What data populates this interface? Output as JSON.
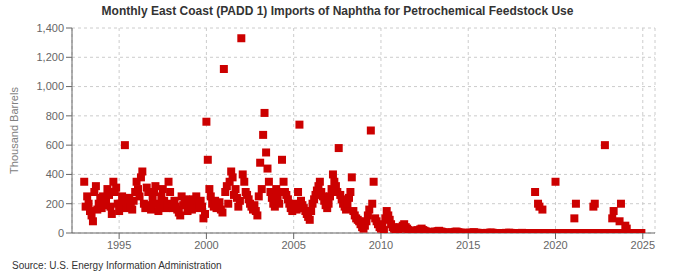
{
  "chart_data": {
    "type": "scatter",
    "title": "Monthly East Coast (PADD 1) Imports of Naphtha for Petrochemical Feedstock Use",
    "ylabel": "Thousand Barrels",
    "source": "Source: U.S. Energy Information Administration",
    "color": "#CC0000",
    "marker": "square",
    "grid": true,
    "xlim": [
      1992.3,
      2025.7
    ],
    "xticks": [
      1995,
      2000,
      2005,
      2010,
      2015,
      2020,
      2025
    ],
    "ylim": [
      0,
      1400
    ],
    "yticks": [
      0,
      200,
      400,
      600,
      800,
      {
        "value": 1000,
        "label": "1,000"
      },
      {
        "value": 1200,
        "label": "1,200"
      },
      {
        "value": 1400,
        "label": "1,400"
      }
    ],
    "x": [
      1993.0,
      1993.08,
      1993.17,
      1993.25,
      1993.33,
      1993.42,
      1993.5,
      1993.58,
      1993.67,
      1993.75,
      1993.83,
      1993.92,
      1994.0,
      1994.08,
      1994.17,
      1994.25,
      1994.33,
      1994.42,
      1994.5,
      1994.58,
      1994.67,
      1994.75,
      1994.83,
      1994.92,
      1995.0,
      1995.08,
      1995.17,
      1995.25,
      1995.33,
      1995.42,
      1995.5,
      1995.58,
      1995.67,
      1995.75,
      1995.83,
      1995.92,
      1996.0,
      1996.08,
      1996.17,
      1996.25,
      1996.33,
      1996.42,
      1996.5,
      1996.58,
      1996.67,
      1996.75,
      1996.83,
      1996.92,
      1997.0,
      1997.08,
      1997.17,
      1997.25,
      1997.33,
      1997.42,
      1997.5,
      1997.58,
      1997.67,
      1997.75,
      1997.83,
      1997.92,
      1998.0,
      1998.08,
      1998.17,
      1998.25,
      1998.33,
      1998.42,
      1998.5,
      1998.58,
      1998.67,
      1998.75,
      1998.83,
      1998.92,
      1999.0,
      1999.08,
      1999.17,
      1999.25,
      1999.33,
      1999.42,
      1999.5,
      1999.58,
      1999.67,
      1999.75,
      1999.83,
      1999.92,
      2000.0,
      2000.08,
      2000.17,
      2000.25,
      2000.33,
      2000.42,
      2000.5,
      2000.58,
      2000.67,
      2000.75,
      2000.83,
      2000.92,
      2001.0,
      2001.08,
      2001.17,
      2001.25,
      2001.33,
      2001.42,
      2001.5,
      2001.58,
      2001.67,
      2001.75,
      2001.83,
      2001.92,
      2002.0,
      2002.08,
      2002.17,
      2002.25,
      2002.33,
      2002.42,
      2002.5,
      2002.58,
      2002.67,
      2002.75,
      2002.83,
      2002.92,
      2003.0,
      2003.08,
      2003.17,
      2003.25,
      2003.33,
      2003.42,
      2003.5,
      2003.58,
      2003.67,
      2003.75,
      2003.83,
      2003.92,
      2004.0,
      2004.08,
      2004.17,
      2004.25,
      2004.33,
      2004.42,
      2004.5,
      2004.58,
      2004.67,
      2004.75,
      2004.83,
      2004.92,
      2005.0,
      2005.08,
      2005.17,
      2005.25,
      2005.33,
      2005.42,
      2005.5,
      2005.58,
      2005.67,
      2005.75,
      2005.83,
      2005.92,
      2006.0,
      2006.08,
      2006.17,
      2006.25,
      2006.33,
      2006.42,
      2006.5,
      2006.58,
      2006.67,
      2006.75,
      2006.83,
      2006.92,
      2007.0,
      2007.08,
      2007.17,
      2007.25,
      2007.33,
      2007.42,
      2007.5,
      2007.58,
      2007.67,
      2007.75,
      2007.83,
      2007.92,
      2008.0,
      2008.08,
      2008.17,
      2008.25,
      2008.33,
      2008.42,
      2008.5,
      2008.58,
      2008.67,
      2008.75,
      2008.83,
      2008.92,
      2009.0,
      2009.08,
      2009.17,
      2009.25,
      2009.33,
      2009.42,
      2009.5,
      2009.58,
      2009.67,
      2009.75,
      2009.83,
      2009.92,
      2010.0,
      2010.08,
      2010.17,
      2010.25,
      2010.33,
      2010.42,
      2010.5,
      2010.58,
      2010.67,
      2010.75,
      2010.83,
      2010.92,
      2011.0,
      2011.08,
      2011.17,
      2011.25,
      2011.33,
      2011.42,
      2011.5,
      2011.58,
      2011.67,
      2011.75,
      2011.83,
      2011.92,
      2012.0,
      2012.08,
      2012.17,
      2012.25,
      2012.33,
      2012.42,
      2012.5,
      2012.58,
      2012.67,
      2012.75,
      2012.83,
      2012.92,
      2013.0,
      2013.08,
      2013.17,
      2013.25,
      2013.33,
      2013.42,
      2013.5,
      2013.58,
      2013.67,
      2013.75,
      2013.83,
      2013.92,
      2014.0,
      2014.08,
      2014.17,
      2014.25,
      2014.33,
      2014.42,
      2014.5,
      2014.58,
      2014.67,
      2014.75,
      2014.83,
      2014.92,
      2015.0,
      2015.08,
      2015.17,
      2015.25,
      2015.33,
      2015.42,
      2015.5,
      2015.58,
      2015.67,
      2015.75,
      2015.83,
      2015.92,
      2016.0,
      2016.08,
      2016.17,
      2016.25,
      2016.33,
      2016.42,
      2016.5,
      2016.58,
      2016.67,
      2016.75,
      2016.83,
      2016.92,
      2017.0,
      2017.08,
      2017.17,
      2017.25,
      2017.33,
      2017.42,
      2017.5,
      2017.58,
      2017.67,
      2017.75,
      2017.83,
      2017.92,
      2018.0,
      2018.08,
      2018.17,
      2018.25,
      2018.33,
      2018.42,
      2018.5,
      2018.58,
      2018.67,
      2018.75,
      2018.83,
      2018.92,
      2019.0,
      2019.08,
      2019.17,
      2019.25,
      2019.33,
      2019.42,
      2019.5,
      2019.58,
      2019.67,
      2019.75,
      2019.83,
      2019.92,
      2020.0,
      2020.08,
      2020.17,
      2020.25,
      2020.33,
      2020.42,
      2020.5,
      2020.58,
      2020.67,
      2020.75,
      2020.83,
      2020.92,
      2021.0,
      2021.08,
      2021.17,
      2021.25,
      2021.33,
      2021.42,
      2021.5,
      2021.58,
      2021.67,
      2021.75,
      2021.83,
      2021.92,
      2022.0,
      2022.08,
      2022.17,
      2022.25,
      2022.33,
      2022.42,
      2022.5,
      2022.58,
      2022.67,
      2022.75,
      2022.83,
      2022.92,
      2023.0,
      2023.08,
      2023.17,
      2023.25,
      2023.33,
      2023.42,
      2023.5,
      2023.58,
      2023.67,
      2023.75,
      2023.83,
      2023.92,
      2024.0,
      2024.08,
      2024.17,
      2024.25,
      2024.33,
      2024.42,
      2024.5,
      2024.58,
      2024.67,
      2024.75,
      2024.83,
      2024.92
    ],
    "values": [
      350,
      180,
      250,
      200,
      150,
      120,
      80,
      280,
      320,
      160,
      200,
      240,
      170,
      250,
      190,
      220,
      300,
      260,
      180,
      130,
      350,
      280,
      310,
      200,
      150,
      200,
      250,
      190,
      600,
      170,
      210,
      240,
      180,
      160,
      220,
      280,
      350,
      300,
      250,
      380,
      420,
      200,
      170,
      310,
      280,
      190,
      160,
      230,
      280,
      320,
      200,
      150,
      180,
      250,
      300,
      220,
      170,
      190,
      350,
      280,
      200,
      170,
      220,
      180,
      160,
      140,
      120,
      250,
      190,
      210,
      230,
      150,
      180,
      200,
      160,
      230,
      210,
      250,
      170,
      190,
      220,
      180,
      100,
      130,
      760,
      500,
      300,
      250,
      200,
      180,
      220,
      170,
      190,
      210,
      160,
      140,
      1120,
      280,
      320,
      200,
      350,
      420,
      380,
      260,
      300,
      240,
      180,
      220,
      1330,
      400,
      350,
      280,
      260,
      230,
      200,
      180,
      160,
      190,
      150,
      120,
      250,
      480,
      300,
      670,
      820,
      550,
      440,
      350,
      280,
      240,
      200,
      180,
      300,
      250,
      200,
      280,
      500,
      350,
      280,
      260,
      230,
      200,
      170,
      150,
      200,
      180,
      160,
      280,
      740,
      220,
      190,
      170,
      150,
      130,
      110,
      90,
      150,
      200,
      230,
      260,
      290,
      320,
      350,
      280,
      250,
      220,
      190,
      170,
      200,
      250,
      300,
      400,
      350,
      320,
      280,
      580,
      260,
      230,
      200,
      180,
      160,
      200,
      240,
      280,
      380,
      150,
      120,
      100,
      90,
      80,
      60,
      40,
      30,
      50,
      80,
      120,
      160,
      700,
      200,
      350,
      100,
      80,
      60,
      40,
      30,
      50,
      20,
      100,
      150,
      120,
      90,
      60,
      40,
      30,
      20,
      10,
      20,
      40,
      30,
      50,
      60,
      40,
      30,
      20,
      15,
      10,
      8,
      5,
      10,
      20,
      15,
      25,
      30,
      20,
      15,
      10,
      8,
      5,
      3,
      2,
      5,
      10,
      8,
      12,
      15,
      10,
      8,
      5,
      3,
      2,
      1,
      1,
      2,
      5,
      3,
      8,
      10,
      5,
      3,
      2,
      1,
      1,
      0,
      0,
      1,
      2,
      1,
      3,
      5,
      2,
      1,
      1,
      0,
      0,
      0,
      0,
      0,
      1,
      0,
      2,
      3,
      1,
      0,
      0,
      0,
      0,
      0,
      0,
      0,
      0,
      1,
      0,
      2,
      1,
      0,
      0,
      0,
      0,
      0,
      0,
      0,
      1,
      0,
      0,
      0,
      0,
      0,
      0,
      0,
      0,
      280,
      0,
      200,
      180,
      0,
      160,
      0,
      0,
      0,
      0,
      0,
      0,
      0,
      0,
      350,
      0,
      0,
      0,
      0,
      0,
      0,
      0,
      0,
      0,
      0,
      0,
      0,
      100,
      200,
      0,
      0,
      0,
      0,
      0,
      0,
      0,
      0,
      0,
      0,
      0,
      180,
      200,
      0,
      0,
      0,
      0,
      0,
      0,
      600,
      0,
      0,
      0,
      0,
      100,
      150,
      0,
      0,
      0,
      80,
      200,
      0,
      0,
      50,
      30,
      0,
      0,
      0,
      0,
      0,
      0,
      0,
      0,
      0,
      0
    ]
  }
}
